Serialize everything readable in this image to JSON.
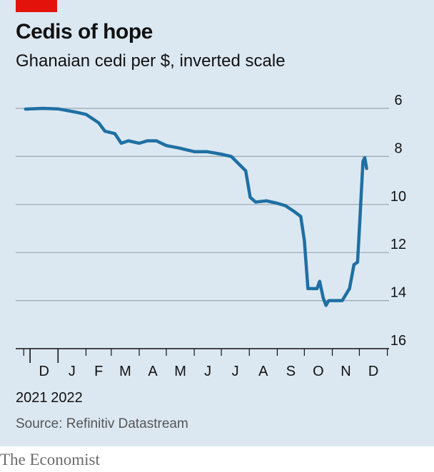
{
  "header": {
    "title": "Cedis of hope",
    "subtitle": "Ghanaian cedi per $, inverted scale"
  },
  "source": "Source: Refinitiv Datastream",
  "footer": "The Economist",
  "colors": {
    "background_panel": "#dbe8f2",
    "line": "#1f6fa3",
    "gridline": "#9aa6b0",
    "brand_red": "#e3120b"
  },
  "chart_data": {
    "type": "line",
    "title": "Cedis of hope",
    "subtitle": "Ghanaian cedi per $, inverted scale",
    "ylabel": "",
    "xlabel": "",
    "y_inverted": true,
    "ylim": [
      16,
      6
    ],
    "yticks": [
      6,
      8,
      10,
      12,
      14,
      16
    ],
    "xlim": [
      "2021-11-23",
      "2022-12-22"
    ],
    "x_month_labels": [
      "D",
      "J",
      "F",
      "M",
      "A",
      "M",
      "J",
      "J",
      "A",
      "S",
      "O",
      "N",
      "D"
    ],
    "x_year_labels": [
      {
        "label": "2021",
        "month_index": 0
      },
      {
        "label": "2022",
        "month_index": 1
      }
    ],
    "grid": "horizontal",
    "series": [
      {
        "points": [
          [
            "2021-11-26",
            6.03
          ],
          [
            "2021-12-15",
            6.0
          ],
          [
            "2022-01-01",
            6.02
          ],
          [
            "2022-01-20",
            6.15
          ],
          [
            "2022-02-01",
            6.25
          ],
          [
            "2022-02-15",
            6.6
          ],
          [
            "2022-02-22",
            6.95
          ],
          [
            "2022-03-05",
            7.05
          ],
          [
            "2022-03-12",
            7.45
          ],
          [
            "2022-03-20",
            7.35
          ],
          [
            "2022-04-01",
            7.45
          ],
          [
            "2022-04-10",
            7.35
          ],
          [
            "2022-04-20",
            7.35
          ],
          [
            "2022-05-01",
            7.55
          ],
          [
            "2022-05-15",
            7.65
          ],
          [
            "2022-06-01",
            7.8
          ],
          [
            "2022-06-15",
            7.8
          ],
          [
            "2022-06-30",
            7.9
          ],
          [
            "2022-07-12",
            8.0
          ],
          [
            "2022-07-20",
            8.3
          ],
          [
            "2022-07-28",
            8.6
          ],
          [
            "2022-08-02",
            9.7
          ],
          [
            "2022-08-08",
            9.9
          ],
          [
            "2022-08-20",
            9.85
          ],
          [
            "2022-09-01",
            9.95
          ],
          [
            "2022-09-10",
            10.05
          ],
          [
            "2022-09-20",
            10.3
          ],
          [
            "2022-09-27",
            10.5
          ],
          [
            "2022-10-01",
            11.5
          ],
          [
            "2022-10-05",
            13.5
          ],
          [
            "2022-10-15",
            13.5
          ],
          [
            "2022-10-18",
            13.2
          ],
          [
            "2022-10-22",
            13.9
          ],
          [
            "2022-10-25",
            14.2
          ],
          [
            "2022-10-28",
            14.0
          ],
          [
            "2022-11-05",
            14.0
          ],
          [
            "2022-11-12",
            14.0
          ],
          [
            "2022-11-20",
            13.5
          ],
          [
            "2022-11-25",
            12.5
          ],
          [
            "2022-11-29",
            12.4
          ],
          [
            "2022-12-01",
            11.0
          ],
          [
            "2022-12-05",
            8.2
          ],
          [
            "2022-12-07",
            8.05
          ],
          [
            "2022-12-09",
            8.5
          ]
        ]
      }
    ]
  }
}
